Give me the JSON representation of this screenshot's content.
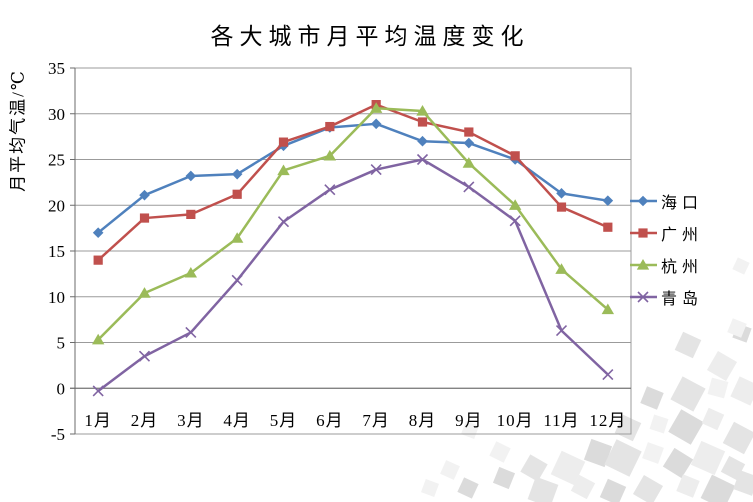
{
  "chart_data": {
    "type": "line",
    "title": "各大城市月平均温度变化",
    "ylabel": "月平均气温/℃",
    "xlabel": "",
    "categories": [
      "1月",
      "2月",
      "3月",
      "4月",
      "5月",
      "6月",
      "7月",
      "8月",
      "9月",
      "10月",
      "11月",
      "12月"
    ],
    "series": [
      {
        "name": "海口",
        "slug": "haikou",
        "color": "#4F81BD",
        "marker": "diamond",
        "values": [
          17.0,
          21.1,
          23.2,
          23.4,
          26.5,
          28.5,
          28.9,
          27.0,
          26.8,
          25.0,
          21.3,
          20.5
        ]
      },
      {
        "name": "广州",
        "slug": "guangzhou",
        "color": "#C0504D",
        "marker": "square",
        "values": [
          14.0,
          18.6,
          19.0,
          21.2,
          26.9,
          28.6,
          31.0,
          29.1,
          28.0,
          25.4,
          19.8,
          17.6
        ]
      },
      {
        "name": "杭州",
        "slug": "hangzhou",
        "color": "#9BBB59",
        "marker": "triangle",
        "values": [
          5.3,
          10.4,
          12.6,
          16.4,
          23.8,
          25.4,
          30.6,
          30.3,
          24.6,
          20.0,
          13.0,
          8.6
        ]
      },
      {
        "name": "青岛",
        "slug": "qingdao",
        "color": "#8064A2",
        "marker": "x",
        "values": [
          -0.3,
          3.5,
          6.1,
          11.8,
          18.2,
          21.7,
          23.9,
          25.0,
          22.0,
          18.3,
          6.3,
          1.5
        ]
      }
    ],
    "ylim": [
      -5,
      35
    ],
    "yticks": [
      -5,
      0,
      5,
      10,
      15,
      20,
      25,
      30,
      35
    ],
    "grid": true,
    "legend_position": "right",
    "gridline_color": "#9b9b9b",
    "axis_color": "#6b6b6b",
    "text_color": "#000000",
    "background_color": "#ffffff",
    "watermark_color": "#e3e3e3"
  }
}
